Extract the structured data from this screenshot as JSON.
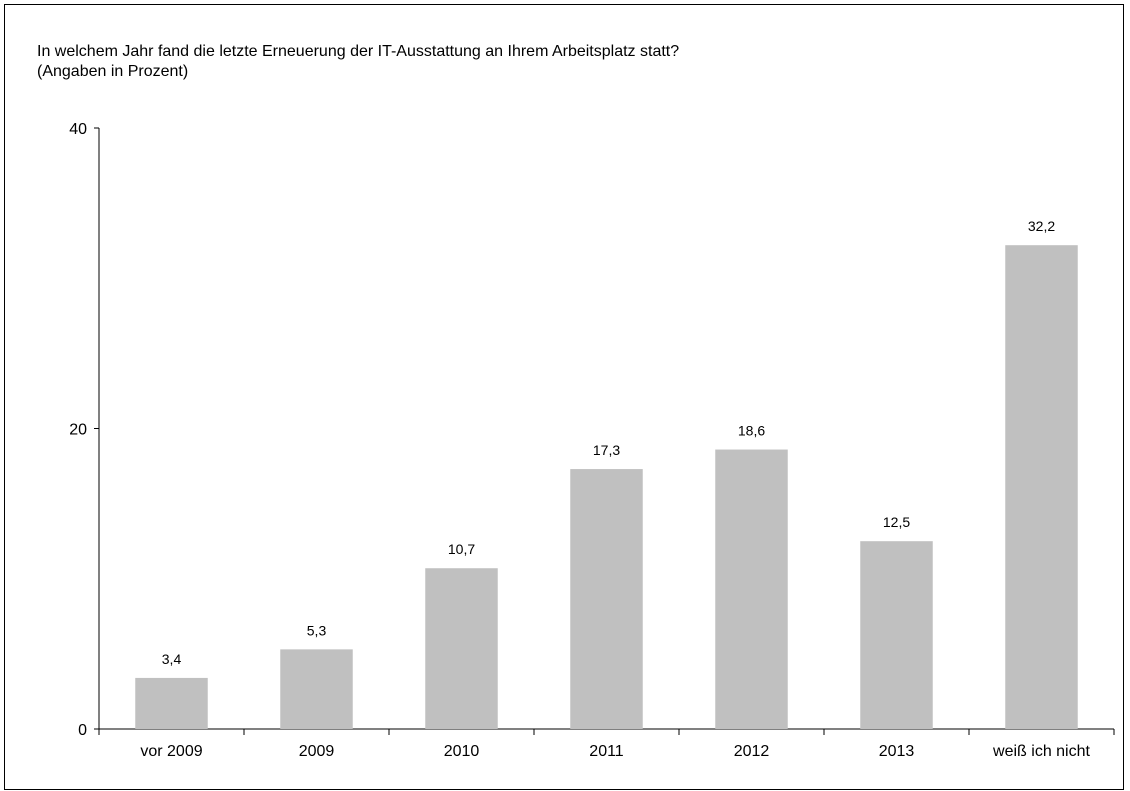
{
  "chart_data": {
    "type": "bar",
    "title": "In welchem Jahr fand die letzte Erneuerung der IT-Ausstattung an Ihrem Arbeitsplatz statt?",
    "subtitle": "(Angaben in Prozent)",
    "categories": [
      "vor 2009",
      "2009",
      "2010",
      "2011",
      "2012",
      "2013",
      "weiß ich nicht"
    ],
    "values": [
      3.4,
      5.3,
      10.7,
      17.3,
      18.6,
      12.5,
      32.2
    ],
    "value_labels": [
      "3,4",
      "5,3",
      "10,7",
      "17,3",
      "18,6",
      "12,5",
      "32,2"
    ],
    "xlabel": "",
    "ylabel": "",
    "ylim": [
      0,
      40
    ],
    "yticks": [
      0,
      20,
      40
    ],
    "grid": false,
    "legend": "none",
    "bar_color": "#c0c0c0"
  }
}
